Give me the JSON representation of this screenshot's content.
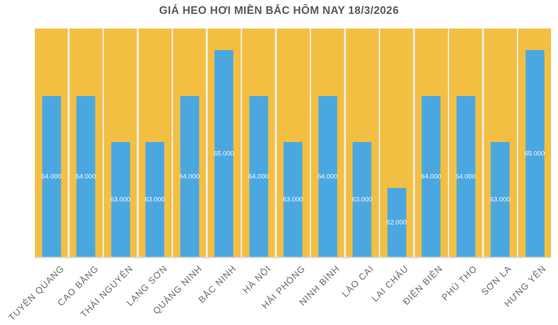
{
  "chart_data": {
    "type": "bar",
    "title": "GIÁ HEO HƠI MIỀN BẮC HÔM NAY 18/3/2026",
    "categories": [
      "TUYÊN QUANG",
      "CAO BẰNG",
      "THÁI NGUYÊN",
      "LẠNG SƠN",
      "QUẢNG NINH",
      "BẮC NINH",
      "HÀ NỘI",
      "HẢI PHÒNG",
      "NINH BÌNH",
      "LÀO CAI",
      "LAI CHÂU",
      "ĐIỆN BIÊN",
      "PHÚ THỌ",
      "SƠN LA",
      "HƯNG YÊN"
    ],
    "values": [
      64000,
      64000,
      63000,
      63000,
      64000,
      65000,
      64000,
      63000,
      64000,
      63000,
      62000,
      64000,
      64000,
      63000,
      65000
    ],
    "value_labels": [
      "64.000",
      "64.000",
      "63.000",
      "63.000",
      "64.000",
      "65.000",
      "64.000",
      "63.000",
      "64.000",
      "63.000",
      "62.000",
      "64.000",
      "64.000",
      "63.000",
      "65.000"
    ],
    "xlabel": "",
    "ylabel": "",
    "ylim": [
      60500,
      65475
    ],
    "legend": "none",
    "grid": "vertical-white-separators",
    "layout": {
      "background_columns_full_height": true,
      "value_label_position": "center-of-bar",
      "x_tick_rotation_deg": 45
    },
    "colors": {
      "bar_fill": "#4BA7E0",
      "column_fill": "#F3BF43",
      "gap_fill": "#EFECE3",
      "axis_line": "#D9D9D9",
      "title_color": "#595959",
      "tick_label_color": "#6A6A6A",
      "value_label_color": "#FFFFFF"
    }
  }
}
